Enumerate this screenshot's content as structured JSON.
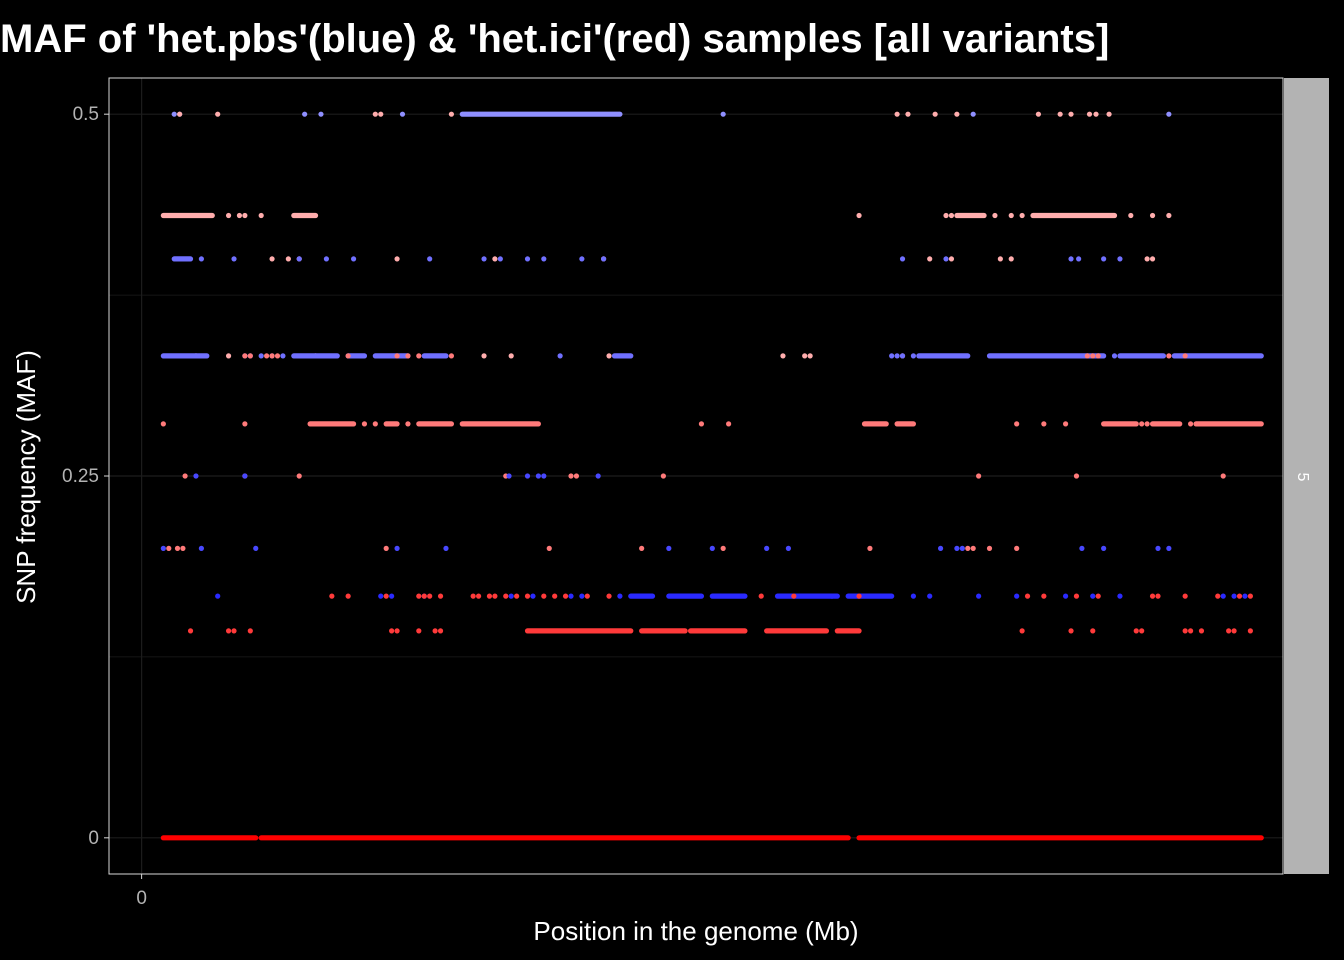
{
  "chart_data": {
    "type": "scatter",
    "title": "MAF of 'het.pbs'(blue) & 'het.ici'(red) samples [all variants]",
    "xlabel": "Position in the genome (Mb)",
    "ylabel": "SNP frequency (MAF)",
    "facet_label": "5",
    "x_ticks": [
      0
    ],
    "y_ticks": [
      0,
      0.25,
      0.5
    ],
    "y_tick_labels": [
      "0",
      "0.25",
      "0.5"
    ],
    "xlim": [
      -0.3,
      10.5
    ],
    "ylim": [
      -0.025,
      0.525
    ],
    "grid": true,
    "legend": "none",
    "colors": {
      "background": "#000000",
      "panel_border": "#d9d9d9",
      "grid": "#1c1c1c",
      "strip": "#b3b3b3",
      "strip_text": "#ffffff",
      "text": "#ffffff",
      "tick_text": "#b3b3b3"
    },
    "series": [
      {
        "name": "het.ici",
        "color": "#ff0000",
        "bands": [
          {
            "y": 0,
            "segments": [
              [
                0.2,
                1.05
              ],
              [
                1.1,
                6.5
              ],
              [
                6.6,
                10.3
              ]
            ]
          }
        ]
      },
      {
        "name": "het.pbs",
        "color": "#8f8fff",
        "bands": [
          {
            "y": 0.5,
            "segments": [
              [
                2.95,
                4.4
              ]
            ],
            "points": [
              0.3,
              0.35,
              1.5,
              1.65,
              2.4,
              5.35,
              7.65,
              9.45
            ]
          }
        ]
      },
      {
        "name": "het.ici",
        "color": "#ffadad",
        "bands": [
          {
            "y": 0.5,
            "points": [
              0.35,
              0.7,
              2.15,
              2.2,
              2.85,
              6.95,
              7.05,
              7.3,
              7.5,
              8.25,
              8.45,
              8.55,
              8.72,
              8.78,
              8.9
            ]
          },
          {
            "y": 0.43,
            "segments": [
              [
                0.2,
                0.65
              ],
              [
                1.4,
                1.6
              ],
              [
                7.5,
                7.75
              ],
              [
                8.2,
                8.95
              ]
            ],
            "points": [
              0.8,
              0.9,
              0.95,
              1.1,
              6.6,
              7.4,
              7.45,
              7.85,
              8.0,
              8.1,
              9.1,
              9.3,
              9.45
            ]
          },
          {
            "y": 0.4,
            "points": [
              1.2,
              1.35,
              1.45,
              2.35,
              3.25,
              4.25,
              7.25,
              7.45,
              7.9,
              8.0,
              9.25,
              9.3
            ]
          },
          {
            "y": 0.333,
            "points": [
              0.5,
              0.8,
              1.6,
              3.15,
              3.4,
              4.3,
              5.9,
              6.1,
              6.15,
              7.0
            ]
          }
        ]
      },
      {
        "name": "het.pbs",
        "color": "#7070ff",
        "bands": [
          {
            "y": 0.4,
            "segments": [
              [
                0.3,
                0.45
              ]
            ],
            "points": [
              0.55,
              0.85,
              1.45,
              1.7,
              1.95,
              2.65,
              3.15,
              3.3,
              3.55,
              3.7,
              4.05,
              4.25,
              7.0,
              7.4,
              8.55,
              8.62,
              8.85,
              9.0
            ]
          },
          {
            "y": 0.333,
            "segments": [
              [
                0.2,
                0.6
              ],
              [
                1.4,
                1.8
              ],
              [
                1.9,
                2.05
              ],
              [
                2.15,
                2.45
              ],
              [
                2.6,
                2.8
              ],
              [
                4.35,
                4.5
              ],
              [
                7.15,
                7.6
              ],
              [
                7.8,
                8.85
              ],
              [
                9.0,
                9.4
              ],
              [
                9.5,
                10.3
              ]
            ],
            "points": [
              0.95,
              1.0,
              1.1,
              1.2,
              1.3,
              3.85,
              6.9,
              6.95,
              7.0,
              7.1,
              8.95
            ]
          }
        ]
      },
      {
        "name": "het.ici",
        "color": "#ff7a7a",
        "bands": [
          {
            "y": 0.333,
            "points": [
              0.95,
              1.0,
              1.15,
              1.2,
              1.25,
              1.9,
              2.35,
              2.45,
              2.55,
              2.85,
              8.7,
              8.75,
              8.8,
              9.45,
              9.6
            ]
          },
          {
            "y": 0.286,
            "segments": [
              [
                1.55,
                1.95
              ],
              [
                2.25,
                2.35
              ],
              [
                2.55,
                2.85
              ],
              [
                2.95,
                3.65
              ],
              [
                6.65,
                6.85
              ],
              [
                6.95,
                7.1
              ],
              [
                8.85,
                9.15
              ],
              [
                9.3,
                9.55
              ],
              [
                9.7,
                10.3
              ]
            ],
            "points": [
              0.2,
              0.95,
              2.05,
              2.15,
              2.45,
              5.15,
              5.4,
              8.05,
              8.3,
              8.5,
              9.2,
              9.25,
              9.65
            ]
          },
          {
            "y": 0.25,
            "points": [
              0.4,
              0.95,
              1.45,
              3.35,
              3.95,
              4.0,
              4.8,
              7.7,
              8.6,
              9.95
            ]
          },
          {
            "y": 0.2,
            "points": [
              0.25,
              0.33,
              0.38,
              2.25,
              3.75,
              4.6,
              5.35,
              6.7,
              7.6,
              7.65,
              7.8,
              8.05
            ]
          }
        ]
      },
      {
        "name": "het.pbs",
        "color": "#4848ff",
        "bands": [
          {
            "y": 0.25,
            "points": [
              0.5,
              0.95,
              3.38,
              3.55,
              3.65,
              3.7,
              4.2
            ]
          },
          {
            "y": 0.2,
            "points": [
              0.2,
              0.55,
              1.05,
              2.35,
              2.8,
              4.85,
              5.25,
              5.75,
              5.95,
              7.35,
              7.5,
              7.55,
              8.65,
              8.85,
              9.35,
              9.45
            ]
          }
        ]
      },
      {
        "name": "het.pbs",
        "color": "#2a2aff",
        "bands": [
          {
            "y": 0.167,
            "segments": [
              [
                4.5,
                4.7
              ],
              [
                4.85,
                5.15
              ],
              [
                5.25,
                5.55
              ],
              [
                5.85,
                6.4
              ],
              [
                6.5,
                6.9
              ]
            ],
            "points": [
              0.7,
              2.2,
              2.3,
              2.6,
              3.4,
              3.6,
              3.95,
              4.05,
              4.4,
              6.35,
              7.1,
              7.25,
              7.7,
              8.05,
              8.5,
              8.75,
              9.0,
              9.95,
              10.05,
              10.15
            ]
          }
        ]
      },
      {
        "name": "het.ici",
        "color": "#ff3a3a",
        "bands": [
          {
            "y": 0.167,
            "points": [
              1.75,
              1.9,
              2.25,
              2.55,
              2.6,
              2.65,
              2.75,
              3.05,
              3.1,
              3.2,
              3.25,
              3.35,
              3.45,
              3.55,
              3.7,
              3.8,
              3.9,
              4.1,
              4.3,
              5.7,
              6.0,
              6.6,
              8.15,
              8.3,
              8.6,
              8.8,
              9.3,
              9.35,
              9.6,
              9.9,
              10.1,
              10.2
            ]
          },
          {
            "y": 0.143,
            "segments": [
              [
                3.55,
                4.5
              ],
              [
                4.6,
                5.0
              ],
              [
                5.05,
                5.55
              ],
              [
                5.75,
                6.3
              ],
              [
                6.4,
                6.6
              ]
            ],
            "points": [
              0.45,
              0.8,
              0.85,
              1.0,
              2.3,
              2.35,
              2.55,
              2.7,
              2.75,
              8.1,
              8.55,
              8.75,
              9.15,
              9.2,
              9.6,
              9.65,
              9.75,
              10.0,
              10.05,
              10.2
            ]
          }
        ]
      }
    ]
  }
}
